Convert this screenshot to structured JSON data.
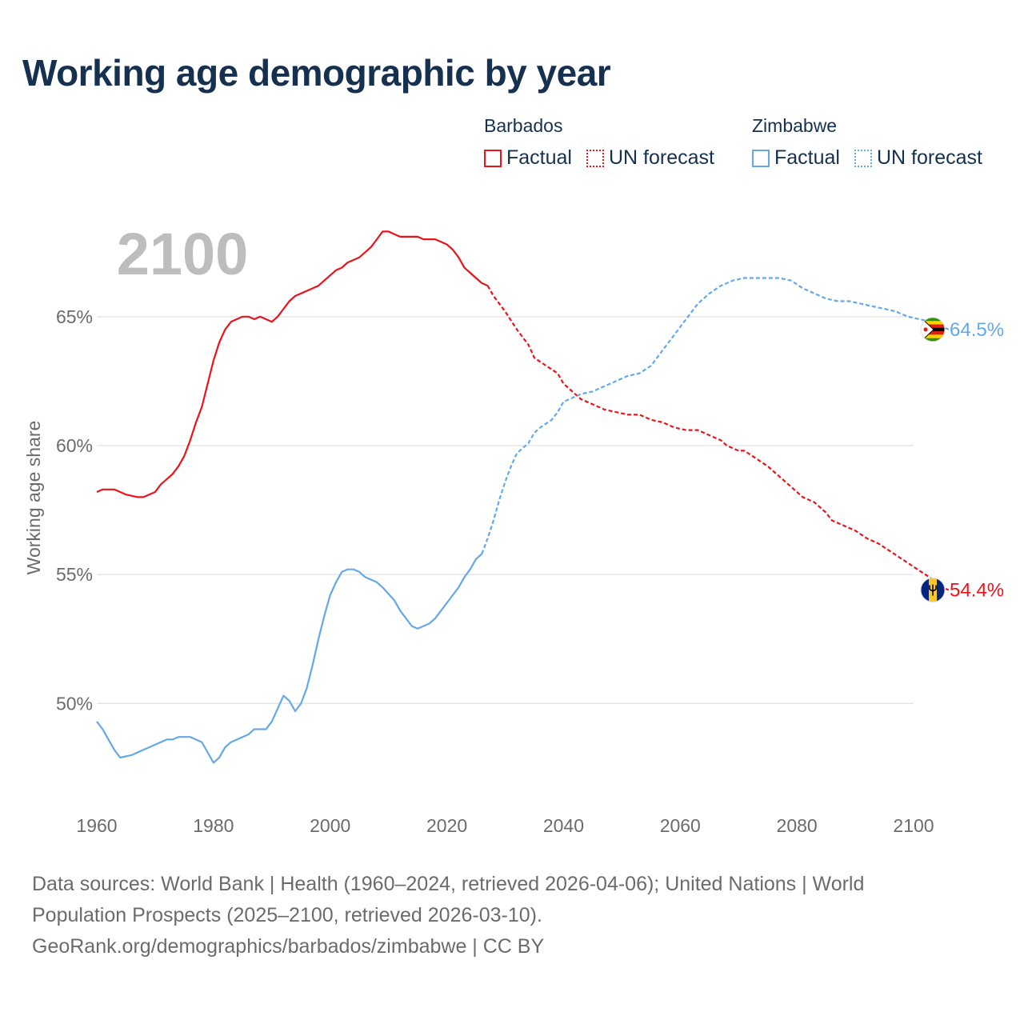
{
  "chart_data": {
    "type": "line",
    "title": "Working age demographic by year",
    "year_label": "2100",
    "ylabel": "Working age share",
    "xlabel": "",
    "xlim": [
      1960,
      2100
    ],
    "ylim": [
      47.0,
      68.5
    ],
    "x_ticks": [
      1960,
      1980,
      2000,
      2020,
      2040,
      2060,
      2080,
      2100
    ],
    "x_tick_labels": [
      "1960",
      "1980",
      "2000",
      "2020",
      "2040",
      "2060",
      "2080",
      "2100"
    ],
    "y_ticks": [
      50,
      55,
      60,
      65
    ],
    "y_tick_labels": [
      "50%",
      "55%",
      "60%",
      "65%"
    ],
    "legend": {
      "groups": [
        {
          "country": "Barbados",
          "color": "#e8141b",
          "factual_label": "Factual",
          "forecast_label": "UN forecast"
        },
        {
          "country": "Zimbabwe",
          "color": "#64a8e8",
          "factual_label": "Factual",
          "forecast_label": "UN forecast"
        }
      ]
    },
    "series": [
      {
        "name": "Barbados",
        "color": "#e8141b",
        "end_label": "54.4%",
        "flag_icon": "barbados-flag-icon",
        "factual": [
          [
            1960,
            58.2
          ],
          [
            1961,
            58.3
          ],
          [
            1963,
            58.3
          ],
          [
            1965,
            58.1
          ],
          [
            1967,
            58.0
          ],
          [
            1968,
            58.0
          ],
          [
            1970,
            58.2
          ],
          [
            1971,
            58.5
          ],
          [
            1972,
            58.7
          ],
          [
            1973,
            58.9
          ],
          [
            1974,
            59.2
          ],
          [
            1975,
            59.6
          ],
          [
            1976,
            60.2
          ],
          [
            1977,
            60.9
          ],
          [
            1978,
            61.5
          ],
          [
            1979,
            62.4
          ],
          [
            1980,
            63.3
          ],
          [
            1981,
            64.0
          ],
          [
            1982,
            64.5
          ],
          [
            1983,
            64.8
          ],
          [
            1984,
            64.9
          ],
          [
            1985,
            65.0
          ],
          [
            1986,
            65.0
          ],
          [
            1987,
            64.9
          ],
          [
            1988,
            65.0
          ],
          [
            1989,
            64.9
          ],
          [
            1990,
            64.8
          ],
          [
            1991,
            65.0
          ],
          [
            1992,
            65.3
          ],
          [
            1993,
            65.6
          ],
          [
            1994,
            65.8
          ],
          [
            1996,
            66.0
          ],
          [
            1998,
            66.2
          ],
          [
            2000,
            66.6
          ],
          [
            2001,
            66.8
          ],
          [
            2002,
            66.9
          ],
          [
            2003,
            67.1
          ],
          [
            2005,
            67.3
          ],
          [
            2007,
            67.7
          ],
          [
            2008,
            68.0
          ],
          [
            2009,
            68.3
          ],
          [
            2010,
            68.3
          ],
          [
            2011,
            68.2
          ],
          [
            2012,
            68.1
          ],
          [
            2013,
            68.1
          ],
          [
            2015,
            68.1
          ],
          [
            2016,
            68.0
          ],
          [
            2018,
            68.0
          ],
          [
            2019,
            67.9
          ],
          [
            2020,
            67.8
          ],
          [
            2021,
            67.6
          ],
          [
            2022,
            67.3
          ],
          [
            2023,
            66.9
          ],
          [
            2024,
            66.7
          ],
          [
            2025,
            66.5
          ],
          [
            2026,
            66.3
          ],
          [
            2027,
            66.2
          ]
        ],
        "forecast": [
          [
            2027,
            66.2
          ],
          [
            2028,
            65.8
          ],
          [
            2030,
            65.2
          ],
          [
            2032,
            64.5
          ],
          [
            2034,
            63.9
          ],
          [
            2035,
            63.4
          ],
          [
            2037,
            63.1
          ],
          [
            2039,
            62.8
          ],
          [
            2040,
            62.4
          ],
          [
            2041,
            62.2
          ],
          [
            2043,
            61.8
          ],
          [
            2045,
            61.6
          ],
          [
            2047,
            61.4
          ],
          [
            2049,
            61.3
          ],
          [
            2051,
            61.2
          ],
          [
            2053,
            61.2
          ],
          [
            2055,
            61.0
          ],
          [
            2057,
            60.9
          ],
          [
            2059,
            60.7
          ],
          [
            2061,
            60.6
          ],
          [
            2063,
            60.6
          ],
          [
            2065,
            60.4
          ],
          [
            2067,
            60.2
          ],
          [
            2068,
            60.0
          ],
          [
            2070,
            59.8
          ],
          [
            2071,
            59.8
          ],
          [
            2073,
            59.5
          ],
          [
            2075,
            59.2
          ],
          [
            2077,
            58.8
          ],
          [
            2079,
            58.4
          ],
          [
            2081,
            58.0
          ],
          [
            2083,
            57.8
          ],
          [
            2085,
            57.4
          ],
          [
            2086,
            57.1
          ],
          [
            2088,
            56.9
          ],
          [
            2090,
            56.7
          ],
          [
            2092,
            56.4
          ],
          [
            2094,
            56.2
          ],
          [
            2096,
            55.9
          ],
          [
            2098,
            55.6
          ],
          [
            2100,
            55.3
          ],
          [
            2102,
            55.0
          ],
          [
            2104,
            54.7
          ],
          [
            2105,
            54.5
          ],
          [
            2106,
            54.4
          ]
        ]
      },
      {
        "name": "Zimbabwe",
        "color": "#64a8e8",
        "end_label": "64.5%",
        "flag_icon": "zimbabwe-flag-icon",
        "factual": [
          [
            1960,
            49.3
          ],
          [
            1961,
            49.0
          ],
          [
            1962,
            48.6
          ],
          [
            1963,
            48.2
          ],
          [
            1964,
            47.9
          ],
          [
            1966,
            48.0
          ],
          [
            1968,
            48.2
          ],
          [
            1970,
            48.4
          ],
          [
            1972,
            48.6
          ],
          [
            1973,
            48.6
          ],
          [
            1974,
            48.7
          ],
          [
            1976,
            48.7
          ],
          [
            1977,
            48.6
          ],
          [
            1978,
            48.5
          ],
          [
            1979,
            48.1
          ],
          [
            1980,
            47.7
          ],
          [
            1981,
            47.9
          ],
          [
            1982,
            48.3
          ],
          [
            1983,
            48.5
          ],
          [
            1985,
            48.7
          ],
          [
            1986,
            48.8
          ],
          [
            1987,
            49.0
          ],
          [
            1989,
            49.0
          ],
          [
            1990,
            49.3
          ],
          [
            1991,
            49.8
          ],
          [
            1992,
            50.3
          ],
          [
            1993,
            50.1
          ],
          [
            1994,
            49.7
          ],
          [
            1995,
            50.0
          ],
          [
            1996,
            50.6
          ],
          [
            1997,
            51.5
          ],
          [
            1998,
            52.5
          ],
          [
            1999,
            53.4
          ],
          [
            2000,
            54.2
          ],
          [
            2001,
            54.7
          ],
          [
            2002,
            55.1
          ],
          [
            2003,
            55.2
          ],
          [
            2004,
            55.2
          ],
          [
            2005,
            55.1
          ],
          [
            2006,
            54.9
          ],
          [
            2008,
            54.7
          ],
          [
            2009,
            54.5
          ],
          [
            2011,
            54.0
          ],
          [
            2012,
            53.6
          ],
          [
            2013,
            53.3
          ],
          [
            2014,
            53.0
          ],
          [
            2015,
            52.9
          ],
          [
            2016,
            53.0
          ],
          [
            2017,
            53.1
          ],
          [
            2018,
            53.3
          ],
          [
            2019,
            53.6
          ],
          [
            2020,
            53.9
          ],
          [
            2021,
            54.2
          ],
          [
            2022,
            54.5
          ],
          [
            2023,
            54.9
          ],
          [
            2024,
            55.2
          ],
          [
            2025,
            55.6
          ],
          [
            2026,
            55.8
          ]
        ],
        "forecast": [
          [
            2026,
            55.8
          ],
          [
            2027,
            56.4
          ],
          [
            2028,
            57.1
          ],
          [
            2029,
            57.9
          ],
          [
            2030,
            58.6
          ],
          [
            2031,
            59.2
          ],
          [
            2032,
            59.7
          ],
          [
            2034,
            60.1
          ],
          [
            2035,
            60.5
          ],
          [
            2036,
            60.7
          ],
          [
            2038,
            61.0
          ],
          [
            2039,
            61.3
          ],
          [
            2040,
            61.7
          ],
          [
            2041,
            61.8
          ],
          [
            2043,
            62.0
          ],
          [
            2045,
            62.1
          ],
          [
            2047,
            62.3
          ],
          [
            2049,
            62.5
          ],
          [
            2051,
            62.7
          ],
          [
            2053,
            62.8
          ],
          [
            2055,
            63.1
          ],
          [
            2057,
            63.7
          ],
          [
            2059,
            64.3
          ],
          [
            2061,
            64.9
          ],
          [
            2063,
            65.5
          ],
          [
            2065,
            65.9
          ],
          [
            2067,
            66.2
          ],
          [
            2069,
            66.4
          ],
          [
            2071,
            66.5
          ],
          [
            2073,
            66.5
          ],
          [
            2075,
            66.5
          ],
          [
            2077,
            66.5
          ],
          [
            2079,
            66.4
          ],
          [
            2081,
            66.1
          ],
          [
            2083,
            65.9
          ],
          [
            2085,
            65.7
          ],
          [
            2087,
            65.6
          ],
          [
            2089,
            65.6
          ],
          [
            2091,
            65.5
          ],
          [
            2093,
            65.4
          ],
          [
            2095,
            65.3
          ],
          [
            2097,
            65.2
          ],
          [
            2099,
            65.0
          ],
          [
            2101,
            64.9
          ],
          [
            2103,
            64.8
          ],
          [
            2105,
            64.6
          ],
          [
            2106,
            64.5
          ]
        ]
      }
    ]
  },
  "footer": {
    "line1": "Data sources: World Bank | Health (1960–2024, retrieved 2026-04-06); United Nations | World",
    "line2": "Population Prospects (2025–2100, retrieved 2026-03-10).",
    "line3": "GeoRank.org/demographics/barbados/zimbabwe | CC BY"
  }
}
